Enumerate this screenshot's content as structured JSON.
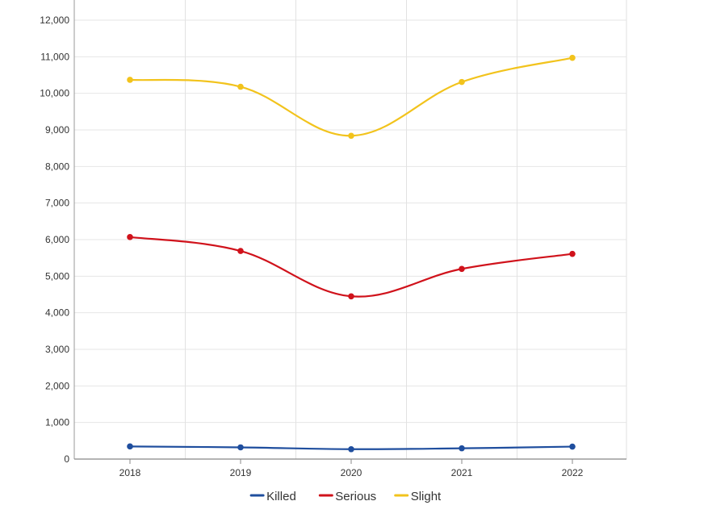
{
  "chart_data": {
    "type": "line",
    "categories": [
      "2018",
      "2019",
      "2020",
      "2021",
      "2022"
    ],
    "series": [
      {
        "name": "Killed",
        "color": "#1f4e9e",
        "values": [
          345,
          320,
          270,
          295,
          340
        ]
      },
      {
        "name": "Serious",
        "color": "#d0121b",
        "values": [
          6070,
          5690,
          4450,
          5200,
          5610
        ]
      },
      {
        "name": "Slight",
        "color": "#f2c31c",
        "values": [
          10370,
          10180,
          8840,
          10310,
          10970
        ]
      }
    ],
    "y_ticks": [
      "0",
      "1,000",
      "2,000",
      "3,000",
      "4,000",
      "5,000",
      "6,000",
      "7,000",
      "8,000",
      "9,000",
      "10,000",
      "11,000",
      "12,000"
    ],
    "ylim": [
      0,
      12000
    ],
    "grid": true,
    "smooth": true,
    "legend_position": "bottom-center",
    "title": "",
    "xlabel": "",
    "ylabel": ""
  }
}
